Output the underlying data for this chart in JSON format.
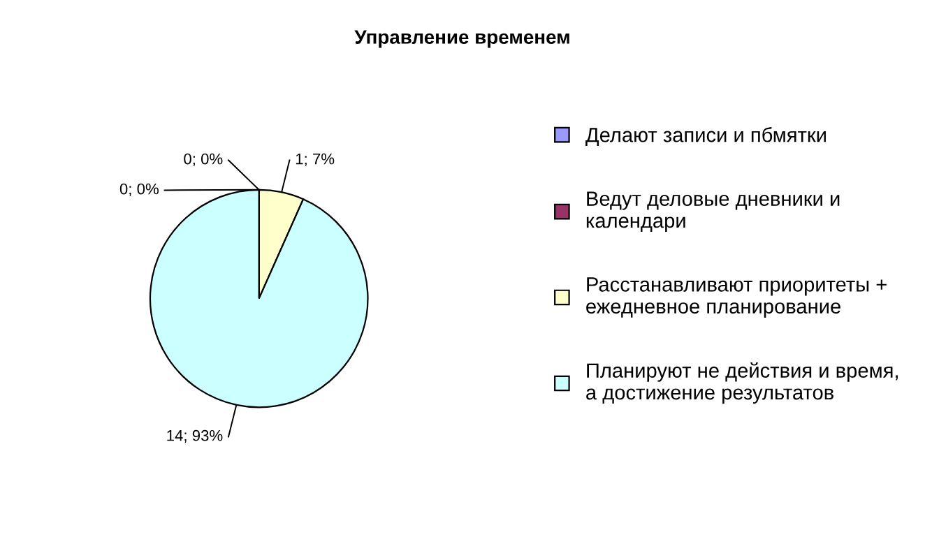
{
  "chart_data": {
    "type": "pie",
    "title": "Управление временем",
    "categories": [
      "Делают записи и пбмятки",
      "Ведут деловые дневники и календари",
      "Расстанавливают приоритеты + ежедневное планирование",
      "Планируют не действия и время, а достижение результатов"
    ],
    "values": [
      0,
      0,
      1,
      14
    ],
    "colors": [
      "#9999ff",
      "#993366",
      "#ffffcc",
      "#ccffff"
    ],
    "value_labels": [
      "0; 0%",
      "0; 0%",
      "1; 7%",
      "14; 93%"
    ],
    "legend": "right"
  }
}
